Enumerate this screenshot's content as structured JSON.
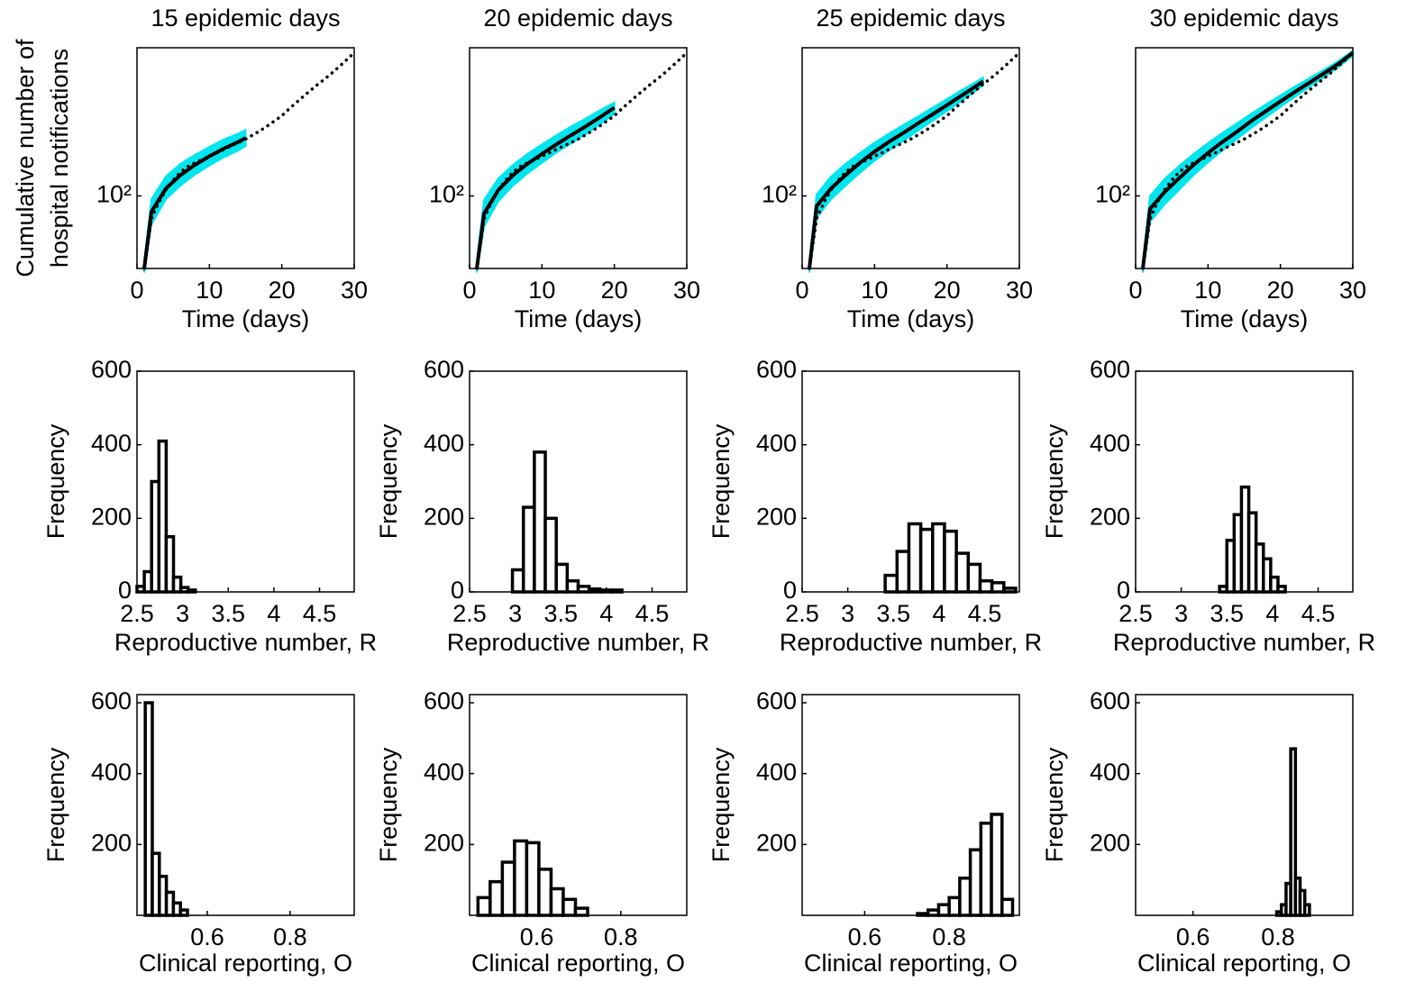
{
  "chart_data": [
    {
      "type": "line",
      "title": "15 epidemic days",
      "xlabel": "Time (days)",
      "ylabel": [
        "Cumulative number of",
        "hospital notifications"
      ],
      "yscale": "log",
      "xlim": [
        0,
        30
      ],
      "xticks": [
        0,
        10,
        20,
        30
      ],
      "ylim": [
        40,
        650
      ],
      "yticks": [
        {
          "value": 100,
          "label": "10²"
        }
      ],
      "series": [
        {
          "style": "band",
          "color": "#00e5ee",
          "x": [
            1,
            2,
            4,
            6,
            8,
            10,
            12,
            14,
            15
          ],
          "lower": [
            38,
            70,
            96,
            114,
            131,
            147,
            163,
            178,
            188
          ],
          "upper": [
            44,
            96,
            128,
            150,
            168,
            186,
            204,
            220,
            230
          ]
        },
        {
          "style": "dotted",
          "color": "#000000",
          "x": [
            1,
            2,
            3,
            4,
            5,
            6,
            7,
            8,
            9,
            10,
            11,
            12,
            13,
            14,
            15,
            16,
            17,
            18,
            19,
            20,
            21,
            22,
            23,
            24,
            25,
            26,
            27,
            28,
            29,
            30
          ],
          "values": [
            40,
            75,
            92,
            108,
            122,
            135,
            145,
            152,
            158,
            165,
            172,
            180,
            188,
            196,
            205,
            216,
            228,
            242,
            258,
            275,
            300,
            325,
            352,
            380,
            410,
            440,
            475,
            515,
            560,
            610
          ]
        },
        {
          "style": "solid",
          "color": "#000000",
          "x": [
            1,
            2,
            4,
            6,
            8,
            10,
            12,
            14,
            15
          ],
          "values": [
            40,
            82,
            110,
            130,
            148,
            165,
            182,
            198,
            208
          ]
        }
      ]
    },
    {
      "type": "line",
      "title": "20 epidemic days",
      "xlabel": "Time (days)",
      "yscale": "log",
      "xlim": [
        0,
        30
      ],
      "xticks": [
        0,
        10,
        20,
        30
      ],
      "ylim": [
        40,
        650
      ],
      "yticks": [
        {
          "value": 100,
          "label": "10²"
        }
      ],
      "series": [
        {
          "style": "band",
          "color": "#00e5ee",
          "x": [
            1,
            2,
            4,
            6,
            8,
            10,
            12,
            14,
            16,
            18,
            20
          ],
          "lower": [
            38,
            68,
            94,
            114,
            133,
            152,
            173,
            194,
            218,
            247,
            282
          ],
          "upper": [
            44,
            95,
            125,
            148,
            170,
            192,
            215,
            240,
            265,
            295,
            325
          ]
        },
        {
          "style": "dotted",
          "color": "#000000",
          "x": [
            1,
            2,
            3,
            4,
            5,
            6,
            7,
            8,
            9,
            10,
            11,
            12,
            13,
            14,
            15,
            16,
            17,
            18,
            19,
            20,
            21,
            22,
            23,
            24,
            25,
            26,
            27,
            28,
            29,
            30
          ],
          "values": [
            40,
            75,
            92,
            108,
            122,
            135,
            145,
            152,
            158,
            165,
            172,
            180,
            188,
            196,
            205,
            216,
            228,
            242,
            258,
            275,
            300,
            325,
            352,
            380,
            410,
            440,
            475,
            515,
            560,
            610
          ]
        },
        {
          "style": "solid",
          "color": "#000000",
          "x": [
            1,
            2,
            4,
            6,
            8,
            10,
            12,
            14,
            16,
            18,
            20
          ],
          "values": [
            40,
            80,
            108,
            130,
            150,
            170,
            192,
            215,
            240,
            270,
            305
          ]
        }
      ]
    },
    {
      "type": "line",
      "title": "25 epidemic days",
      "xlabel": "Time (days)",
      "yscale": "log",
      "xlim": [
        0,
        30
      ],
      "xticks": [
        0,
        10,
        20,
        30
      ],
      "ylim": [
        40,
        650
      ],
      "yticks": [
        {
          "value": 100,
          "label": "10²"
        }
      ],
      "series": [
        {
          "style": "band",
          "color": "#00e5ee",
          "x": [
            1,
            2,
            4,
            6,
            8,
            10,
            12,
            14,
            16,
            18,
            20,
            22,
            24,
            25
          ],
          "lower": [
            38,
            76,
            96,
            114,
            134,
            156,
            178,
            201,
            228,
            258,
            292,
            332,
            378,
            405
          ],
          "upper": [
            44,
            102,
            128,
            150,
            172,
            196,
            220,
            245,
            273,
            304,
            340,
            380,
            422,
            445
          ]
        },
        {
          "style": "dotted",
          "color": "#000000",
          "x": [
            1,
            2,
            3,
            4,
            5,
            6,
            7,
            8,
            9,
            10,
            11,
            12,
            13,
            14,
            15,
            16,
            17,
            18,
            19,
            20,
            21,
            22,
            23,
            24,
            25,
            26,
            27,
            28,
            29,
            30
          ],
          "values": [
            40,
            75,
            92,
            108,
            122,
            135,
            145,
            152,
            158,
            165,
            172,
            180,
            188,
            196,
            205,
            216,
            228,
            242,
            258,
            275,
            300,
            325,
            352,
            380,
            410,
            440,
            475,
            515,
            560,
            610
          ]
        },
        {
          "style": "solid",
          "color": "#000000",
          "x": [
            1,
            2,
            4,
            6,
            8,
            10,
            12,
            14,
            16,
            18,
            20,
            22,
            24,
            25
          ],
          "values": [
            40,
            88,
            110,
            130,
            152,
            175,
            198,
            222,
            250,
            280,
            315,
            355,
            400,
            425
          ]
        }
      ]
    },
    {
      "type": "line",
      "title": "30 epidemic days",
      "xlabel": "Time (days)",
      "yscale": "log",
      "xlim": [
        0,
        30
      ],
      "xticks": [
        0,
        10,
        20,
        30
      ],
      "ylim": [
        40,
        650
      ],
      "yticks": [
        {
          "value": 100,
          "label": "10²"
        }
      ],
      "series": [
        {
          "style": "band",
          "color": "#00e5ee",
          "x": [
            1,
            2,
            4,
            6,
            8,
            10,
            12,
            14,
            16,
            18,
            20,
            22,
            24,
            26,
            28,
            30
          ],
          "lower": [
            38,
            72,
            90,
            108,
            130,
            153,
            178,
            205,
            237,
            270,
            308,
            350,
            396,
            448,
            508,
            590
          ],
          "upper": [
            44,
            100,
            124,
            146,
            170,
            195,
            222,
            250,
            283,
            318,
            356,
            398,
            442,
            492,
            550,
            625
          ]
        },
        {
          "style": "dotted",
          "color": "#000000",
          "x": [
            1,
            2,
            3,
            4,
            5,
            6,
            7,
            8,
            9,
            10,
            11,
            12,
            13,
            14,
            15,
            16,
            17,
            18,
            19,
            20,
            21,
            22,
            23,
            24,
            25,
            26,
            27,
            28,
            29,
            30
          ],
          "values": [
            40,
            75,
            92,
            108,
            122,
            135,
            145,
            152,
            158,
            165,
            172,
            180,
            188,
            196,
            205,
            216,
            228,
            242,
            258,
            275,
            300,
            325,
            352,
            380,
            410,
            440,
            475,
            515,
            560,
            610
          ]
        },
        {
          "style": "solid",
          "color": "#000000",
          "x": [
            1,
            2,
            4,
            6,
            8,
            10,
            12,
            14,
            16,
            18,
            20,
            22,
            24,
            26,
            28,
            30
          ],
          "values": [
            40,
            85,
            105,
            125,
            148,
            172,
            198,
            225,
            258,
            292,
            330,
            372,
            418,
            470,
            530,
            610
          ]
        }
      ]
    },
    {
      "type": "histogram",
      "xlabel": "Reproductive number, R",
      "ylabel": "Frequency",
      "color": "#ffffff",
      "edgecolor": "#000000",
      "xlim": [
        2.5,
        4.88
      ],
      "xticks": [
        2.5,
        3,
        3.5,
        4,
        4.5
      ],
      "ylim": [
        0,
        600
      ],
      "yticks": [
        0,
        200,
        400,
        600
      ],
      "bins": [
        2.5,
        2.58,
        2.66,
        2.74,
        2.82,
        2.9,
        2.98,
        3.06,
        3.14
      ],
      "values": [
        15,
        55,
        300,
        410,
        150,
        40,
        12,
        5
      ]
    },
    {
      "type": "histogram",
      "xlabel": "Reproductive number, R",
      "ylabel": "Frequency",
      "color": "#ffffff",
      "edgecolor": "#000000",
      "xlim": [
        2.5,
        4.88
      ],
      "xticks": [
        2.5,
        3,
        3.5,
        4,
        4.5
      ],
      "ylim": [
        0,
        600
      ],
      "yticks": [
        0,
        200,
        400,
        600
      ],
      "bins": [
        2.97,
        3.09,
        3.21,
        3.33,
        3.45,
        3.57,
        3.69,
        3.81,
        3.93,
        4.05,
        4.17
      ],
      "values": [
        60,
        230,
        380,
        200,
        75,
        30,
        15,
        8,
        5,
        5
      ]
    },
    {
      "type": "histogram",
      "xlabel": "Reproductive number, R",
      "ylabel": "Frequency",
      "color": "#ffffff",
      "edgecolor": "#000000",
      "xlim": [
        2.5,
        4.88
      ],
      "xticks": [
        2.5,
        3,
        3.5,
        4,
        4.5
      ],
      "ylim": [
        0,
        600
      ],
      "yticks": [
        0,
        200,
        400,
        600
      ],
      "bins": [
        3.41,
        3.54,
        3.67,
        3.8,
        3.93,
        4.06,
        4.19,
        4.32,
        4.45,
        4.58,
        4.71,
        4.84
      ],
      "values": [
        45,
        110,
        185,
        170,
        185,
        165,
        105,
        75,
        30,
        25,
        10
      ]
    },
    {
      "type": "histogram",
      "xlabel": "Reproductive number, R",
      "ylabel": "Frequency",
      "color": "#ffffff",
      "edgecolor": "#000000",
      "xlim": [
        2.5,
        4.88
      ],
      "xticks": [
        2.5,
        3,
        3.5,
        4,
        4.5
      ],
      "ylim": [
        0,
        600
      ],
      "yticks": [
        0,
        200,
        400,
        600
      ],
      "bins": [
        3.42,
        3.5,
        3.58,
        3.66,
        3.74,
        3.82,
        3.9,
        3.98,
        4.06,
        4.14
      ],
      "values": [
        15,
        140,
        210,
        285,
        215,
        130,
        90,
        40,
        15
      ]
    },
    {
      "type": "histogram",
      "xlabel": "Clinical reporting, O",
      "ylabel": "Frequency",
      "color": "#ffffff",
      "edgecolor": "#000000",
      "xlim": [
        0.43,
        0.955
      ],
      "xticks": [
        0.6,
        0.8
      ],
      "ylim": [
        0,
        623
      ],
      "yticks": [
        200,
        400,
        600
      ],
      "bins": [
        0.45,
        0.467,
        0.484,
        0.501,
        0.518,
        0.535,
        0.552
      ],
      "values": [
        600,
        175,
        110,
        65,
        35,
        15
      ]
    },
    {
      "type": "histogram",
      "xlabel": "Clinical reporting, O",
      "ylabel": "Frequency",
      "color": "#ffffff",
      "edgecolor": "#000000",
      "xlim": [
        0.44,
        0.957
      ],
      "xticks": [
        0.6,
        0.8
      ],
      "ylim": [
        0,
        623
      ],
      "yticks": [
        200,
        400,
        600
      ],
      "bins": [
        0.46,
        0.489,
        0.518,
        0.547,
        0.576,
        0.605,
        0.634,
        0.663,
        0.692,
        0.721
      ],
      "values": [
        50,
        95,
        150,
        210,
        205,
        130,
        75,
        45,
        20
      ]
    },
    {
      "type": "histogram",
      "xlabel": "Clinical reporting, O",
      "ylabel": "Frequency",
      "color": "#ffffff",
      "edgecolor": "#000000",
      "xlim": [
        0.452,
        0.966
      ],
      "xticks": [
        0.6,
        0.8
      ],
      "ylim": [
        0,
        623
      ],
      "yticks": [
        200,
        400,
        600
      ],
      "bins": [
        0.725,
        0.75,
        0.775,
        0.8,
        0.825,
        0.85,
        0.875,
        0.9,
        0.925,
        0.95
      ],
      "values": [
        5,
        15,
        30,
        50,
        105,
        185,
        260,
        285,
        45
      ]
    },
    {
      "type": "histogram",
      "xlabel": "Clinical reporting, O",
      "ylabel": "Frequency",
      "color": "#ffffff",
      "edgecolor": "#000000",
      "xlim": [
        0.465,
        0.976
      ],
      "xticks": [
        0.6,
        0.8
      ],
      "ylim": [
        0,
        623
      ],
      "yticks": [
        200,
        400,
        600
      ],
      "bins": [
        0.797,
        0.808,
        0.819,
        0.83,
        0.841,
        0.852,
        0.863,
        0.874
      ],
      "values": [
        10,
        30,
        90,
        470,
        105,
        70,
        30
      ]
    }
  ]
}
